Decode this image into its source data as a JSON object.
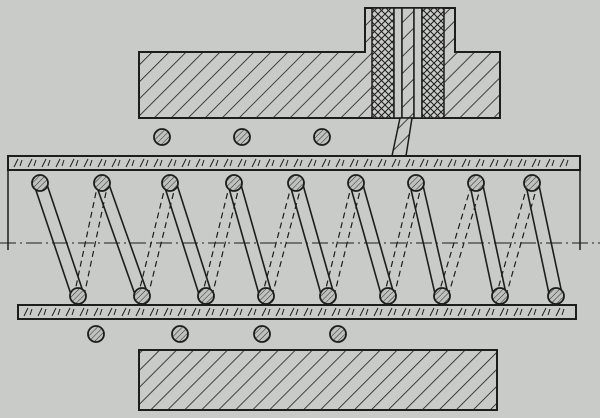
{
  "figure": {
    "colors": {
      "paper": "#c9cbc8",
      "ink": "#1d1d1d",
      "wire": "#3a3a3a"
    },
    "parts": [
      {
        "name": "upper-hatched-block",
        "icon": "hatched-section"
      },
      {
        "name": "lower-hatched-block",
        "icon": "hatched-section"
      },
      {
        "name": "vertical-feed-tube",
        "icon": "cross-hatched-insulation"
      },
      {
        "name": "glass-tube",
        "icon": "dash-dot-hatched-tube-wall"
      },
      {
        "name": "helical-coil",
        "icon": "wire-cross-sections"
      },
      {
        "name": "center-axis",
        "icon": "dash-dot-line"
      }
    ]
  }
}
